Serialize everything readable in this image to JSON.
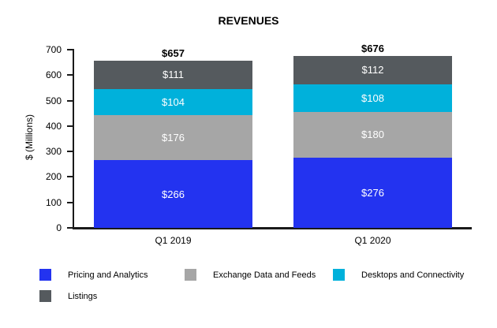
{
  "chart_data": {
    "type": "bar",
    "stacked": true,
    "title": "REVENUES",
    "xlabel": "",
    "ylabel": "$ (Millions)",
    "categories": [
      "Q1 2019",
      "Q1 2020"
    ],
    "series": [
      {
        "name": "Pricing and Analytics",
        "color": "#2333F0",
        "values": [
          266,
          276
        ]
      },
      {
        "name": "Exchange Data and Feeds",
        "color": "#A6A6A6",
        "values": [
          176,
          180
        ]
      },
      {
        "name": "Desktops and Connectivity",
        "color": "#00B1DB",
        "values": [
          104,
          108
        ]
      },
      {
        "name": "Listings",
        "color": "#555A5E",
        "values": [
          111,
          112
        ]
      }
    ],
    "segment_labels": [
      [
        "$266",
        "$176",
        "$104",
        "$111"
      ],
      [
        "$276",
        "$180",
        "$108",
        "$112"
      ]
    ],
    "totals": [
      "$657",
      "$676"
    ],
    "ylim": [
      0,
      700
    ],
    "yticks": [
      0,
      100,
      200,
      300,
      400,
      500,
      600,
      700
    ],
    "grid": false,
    "legend_position": "bottom",
    "axis_color": "#1a1a1a",
    "value_label_color": "#ffffff"
  }
}
